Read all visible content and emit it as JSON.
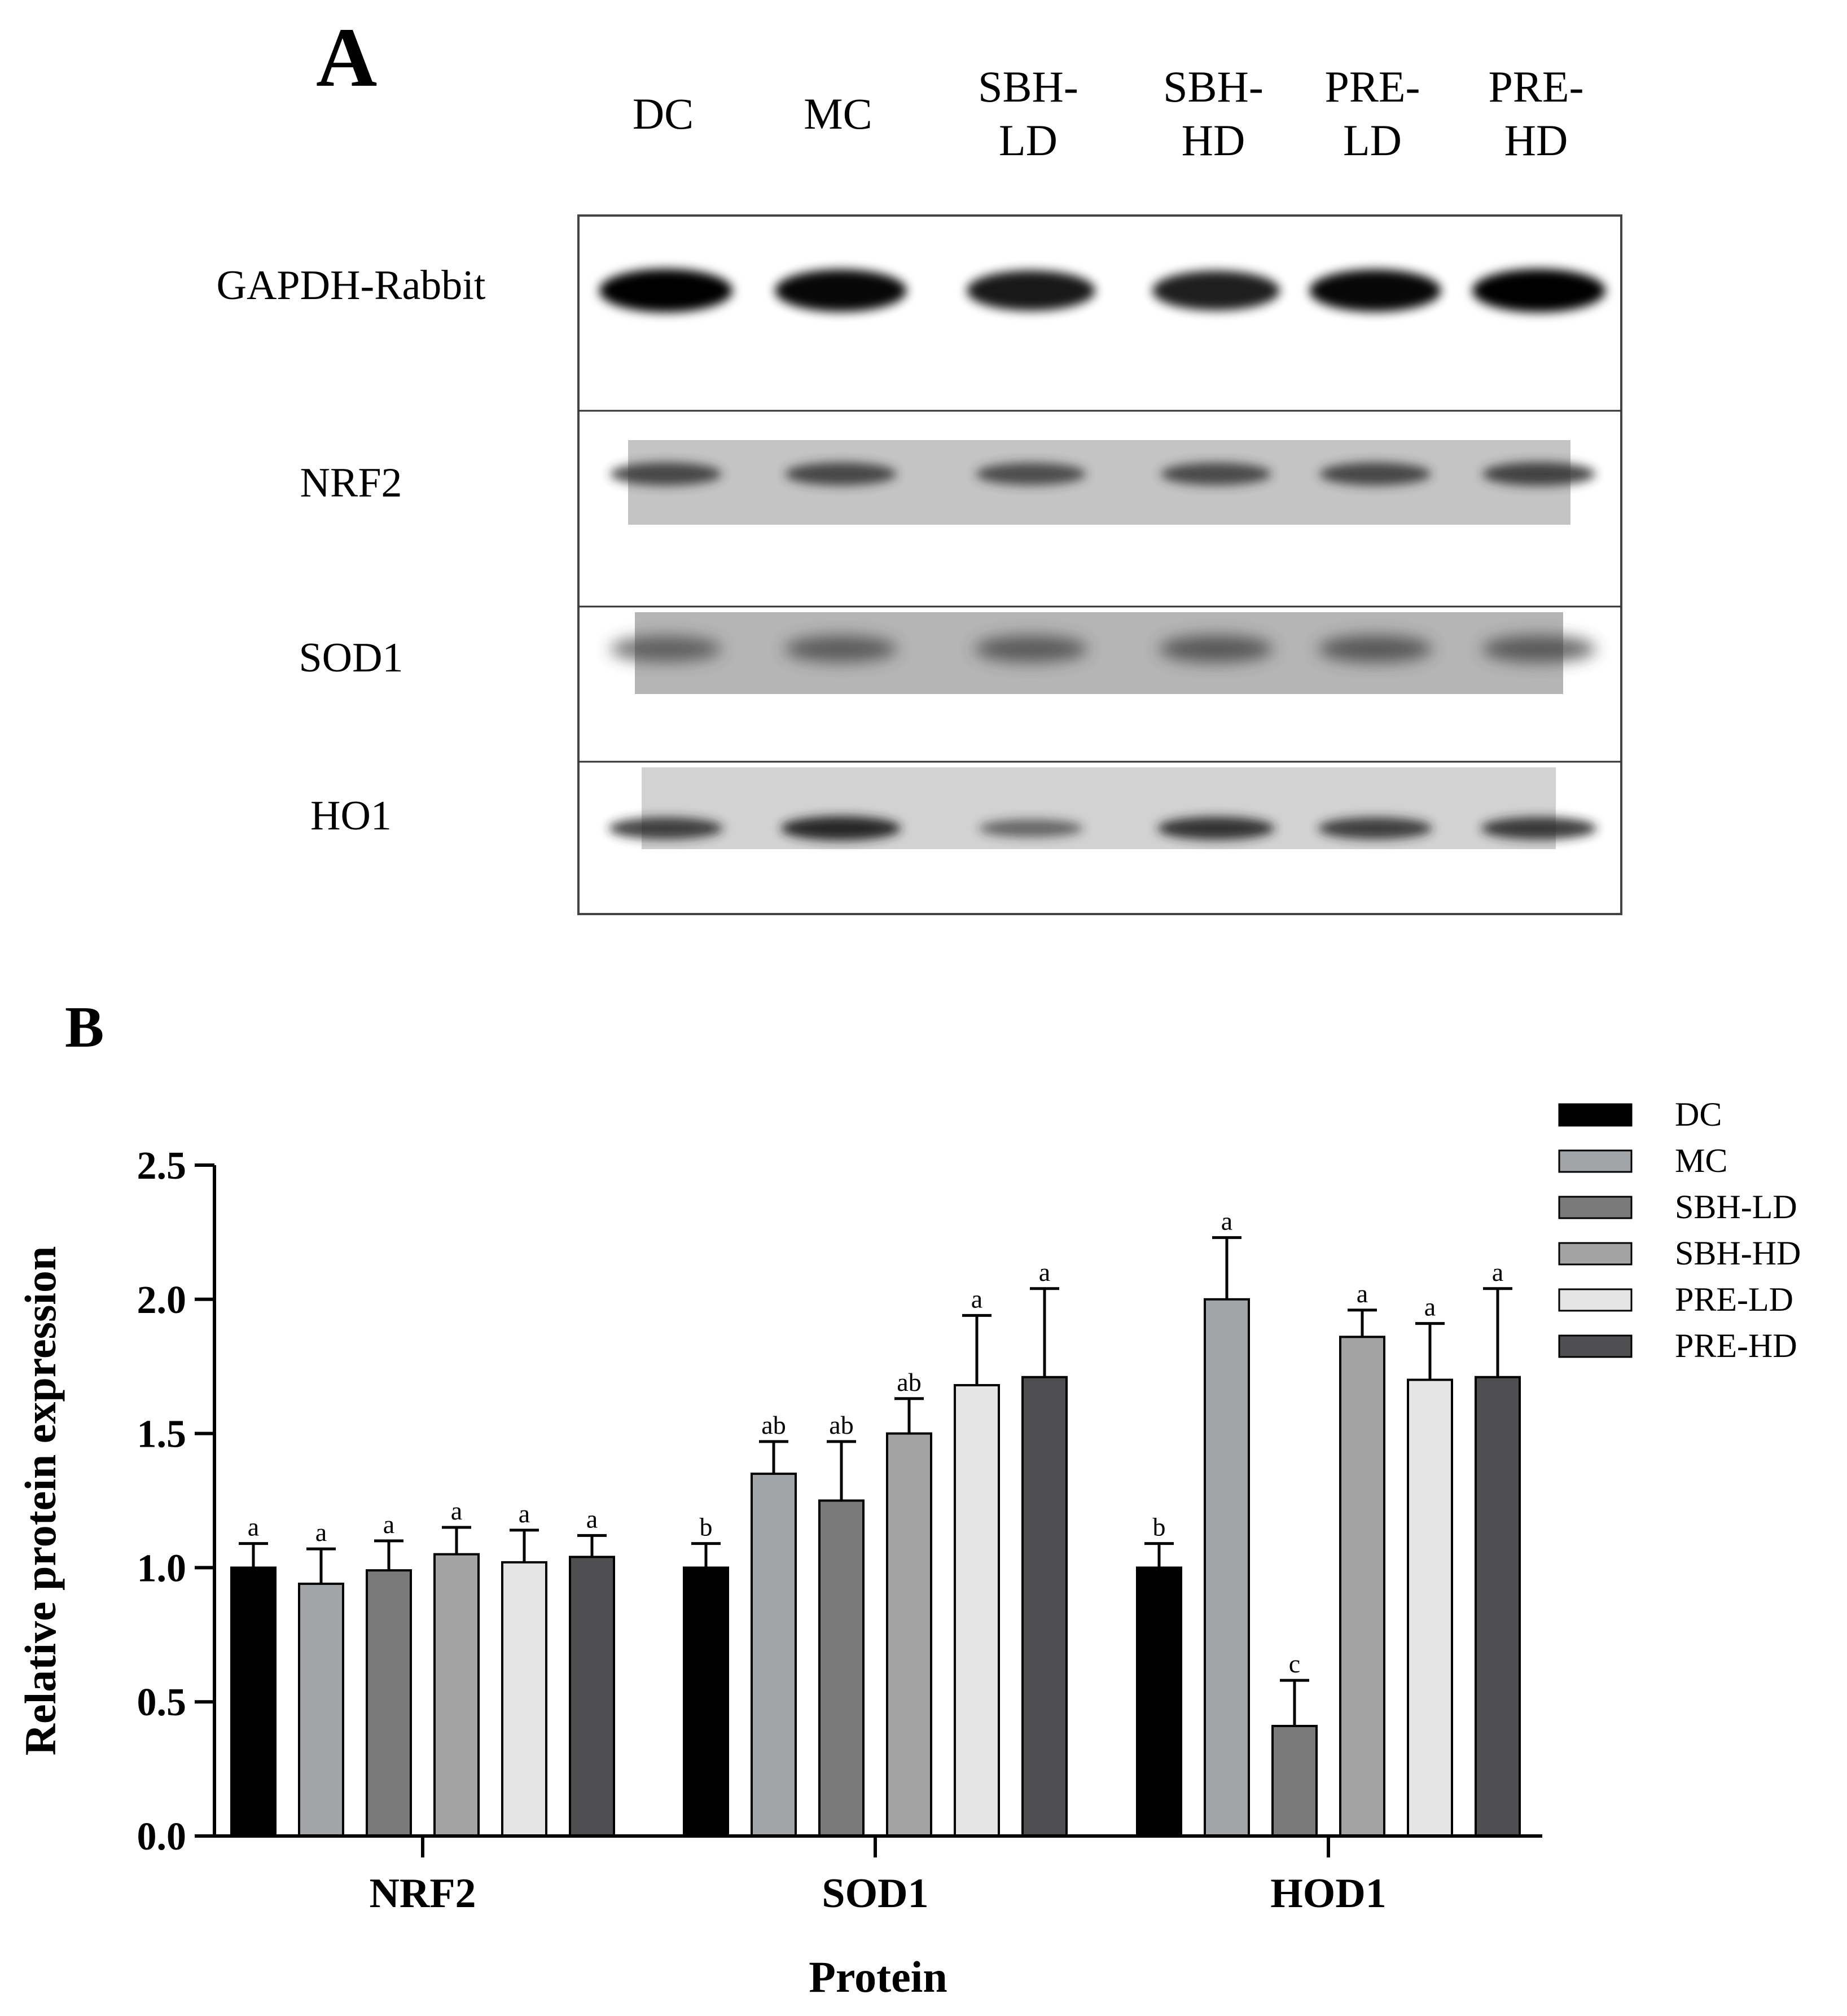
{
  "panel_a": {
    "label": "A",
    "lanes": [
      {
        "line1": "DC",
        "line2": ""
      },
      {
        "line1": "MC",
        "line2": ""
      },
      {
        "line1": "SBH-",
        "line2": "LD"
      },
      {
        "line1": "SBH-",
        "line2": "HD"
      },
      {
        "line1": "PRE-",
        "line2": "LD"
      },
      {
        "line1": "PRE-",
        "line2": "HD"
      }
    ],
    "blots": [
      {
        "name": "GAPDH-Rabbit",
        "band_intensity": [
          1.0,
          0.95,
          0.85,
          0.82,
          0.95,
          1.0
        ]
      },
      {
        "name": "NRF2",
        "band_intensity": [
          0.75,
          0.75,
          0.7,
          0.72,
          0.75,
          0.8
        ]
      },
      {
        "name": "SOD1",
        "band_intensity": [
          0.55,
          0.6,
          0.62,
          0.65,
          0.65,
          0.63
        ]
      },
      {
        "name": "HO1",
        "band_intensity": [
          0.75,
          0.95,
          0.4,
          0.85,
          0.75,
          0.8
        ]
      }
    ]
  },
  "chart_data": {
    "panel_label": "B",
    "type": "bar",
    "title": "",
    "xlabel": "Protein",
    "ylabel": "Relative protein expression",
    "ylim": [
      0,
      2.5
    ],
    "yticks": [
      "0.0",
      "0.5",
      "1.0",
      "1.5",
      "2.0",
      "2.5"
    ],
    "categories": [
      "NRF2",
      "SOD1",
      "HOD1"
    ],
    "series": [
      {
        "name": "DC",
        "color": "#000000",
        "values": [
          1.0,
          1.0,
          1.0
        ],
        "errors": [
          0.09,
          0.09,
          0.09
        ],
        "labels": [
          "a",
          "b",
          "b"
        ]
      },
      {
        "name": "MC",
        "color": "#a2a5a8",
        "values": [
          0.94,
          1.35,
          2.0
        ],
        "errors": [
          0.13,
          0.12,
          0.23
        ],
        "labels": [
          "a",
          "ab",
          "a"
        ]
      },
      {
        "name": "SBH-LD",
        "color": "#7a7a7a",
        "values": [
          0.99,
          1.25,
          0.41
        ],
        "errors": [
          0.11,
          0.22,
          0.17
        ],
        "labels": [
          "a",
          "ab",
          "c"
        ]
      },
      {
        "name": "SBH-HD",
        "color": "#a3a3a3",
        "values": [
          1.05,
          1.5,
          1.86
        ],
        "errors": [
          0.1,
          0.13,
          0.1
        ],
        "labels": [
          "a",
          "ab",
          "a"
        ]
      },
      {
        "name": "PRE-LD",
        "color": "#e4e4e4",
        "values": [
          1.02,
          1.68,
          1.7
        ],
        "errors": [
          0.12,
          0.26,
          0.21
        ],
        "labels": [
          "a",
          "a",
          "a"
        ]
      },
      {
        "name": "PRE-HD",
        "color": "#4f4f52",
        "values": [
          1.04,
          1.71,
          1.71
        ],
        "errors": [
          0.08,
          0.33,
          0.33
        ],
        "labels": [
          "a",
          "a",
          "a"
        ]
      }
    ],
    "legend_position": "top-right",
    "grid": false
  }
}
